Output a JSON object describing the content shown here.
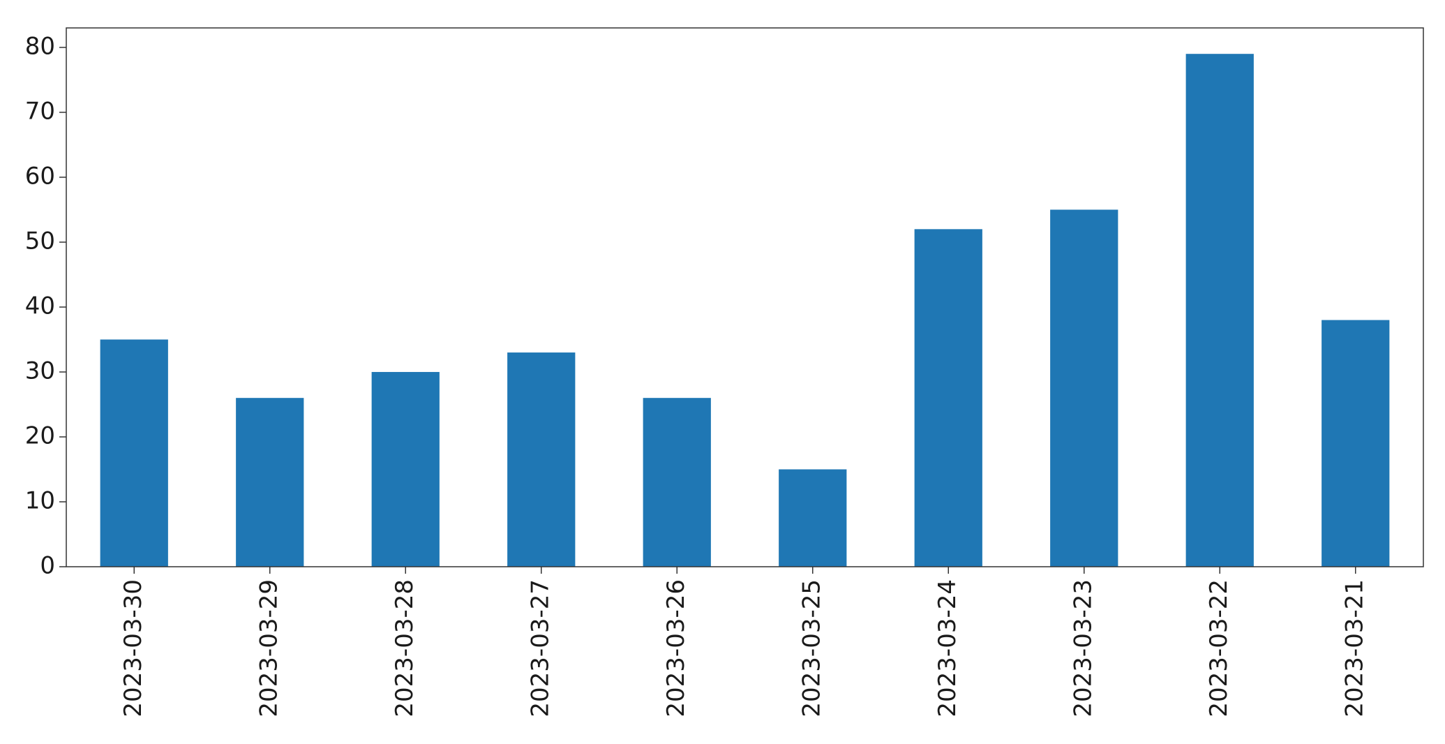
{
  "chart_data": {
    "type": "bar",
    "categories": [
      "2023-03-30",
      "2023-03-29",
      "2023-03-28",
      "2023-03-27",
      "2023-03-26",
      "2023-03-25",
      "2023-03-24",
      "2023-03-23",
      "2023-03-22",
      "2023-03-21"
    ],
    "values": [
      35,
      26,
      30,
      33,
      26,
      15,
      52,
      55,
      79,
      38
    ],
    "title": "",
    "xlabel": "",
    "ylabel": "",
    "ylim": [
      0,
      83
    ],
    "yticks": [
      0,
      10,
      20,
      30,
      40,
      50,
      60,
      70,
      80
    ],
    "grid": false,
    "legend": "none",
    "bar_color": "#1f77b4"
  }
}
